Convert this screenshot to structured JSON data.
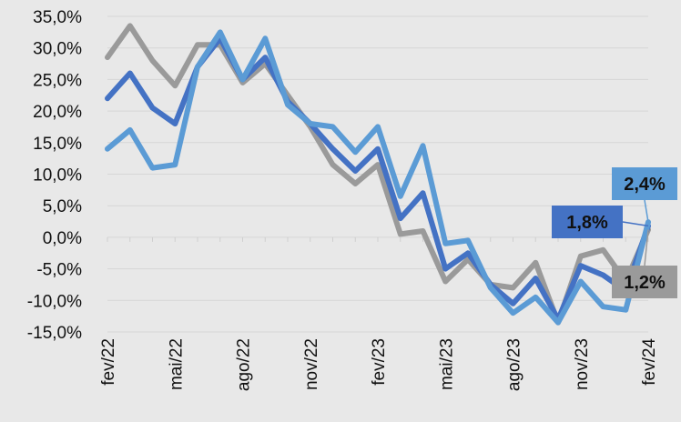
{
  "chart_data": {
    "type": "line",
    "title": "",
    "xlabel": "",
    "ylabel": "",
    "ylim": [
      -15,
      35
    ],
    "yticks": [
      -15,
      -10,
      -5,
      0,
      5,
      10,
      15,
      20,
      25,
      30,
      35
    ],
    "ytick_labels": [
      "-15,0%",
      "-10,0%",
      "-5,0%",
      "0,0%",
      "5,0%",
      "10,0%",
      "15,0%",
      "20,0%",
      "25,0%",
      "30,0%",
      "35,0%"
    ],
    "x": [
      "fev/22",
      "mar/22",
      "abr/22",
      "mai/22",
      "jun/22",
      "jul/22",
      "ago/22",
      "set/22",
      "out/22",
      "nov/22",
      "dez/22",
      "jan/23",
      "fev/23",
      "mar/23",
      "abr/23",
      "mai/23",
      "jun/23",
      "jul/23",
      "ago/23",
      "set/23",
      "out/23",
      "nov/23",
      "dez/23",
      "jan/24",
      "fev/24"
    ],
    "xtick_labels": [
      {
        "index": 0,
        "label": "fev/22"
      },
      {
        "index": 3,
        "label": "mai/22"
      },
      {
        "index": 6,
        "label": "ago/22"
      },
      {
        "index": 9,
        "label": "nov/22"
      },
      {
        "index": 12,
        "label": "fev/23"
      },
      {
        "index": 15,
        "label": "mai/23"
      },
      {
        "index": 18,
        "label": "ago/23"
      },
      {
        "index": 21,
        "label": "nov/23"
      },
      {
        "index": 24,
        "label": "fev/24"
      }
    ],
    "grid": "horizontal",
    "series": [
      {
        "color": "#9a9a9a",
        "values": [
          28.5,
          33.5,
          28.0,
          24.0,
          30.5,
          30.5,
          24.5,
          27.5,
          22.5,
          17.5,
          11.5,
          8.5,
          11.5,
          0.5,
          1.0,
          -7.0,
          -3.5,
          -7.5,
          -8.0,
          -4.0,
          -13.5,
          -3.0,
          -2.0,
          -7.0,
          1.2
        ],
        "end_label": "1,2%"
      },
      {
        "color": "#4472c4",
        "values": [
          22.0,
          26.0,
          20.5,
          18.0,
          27.0,
          31.5,
          25.0,
          28.5,
          21.5,
          18.0,
          14.0,
          10.5,
          14.0,
          3.0,
          7.0,
          -5.0,
          -2.5,
          -7.5,
          -10.5,
          -6.5,
          -13.0,
          -4.5,
          -6.0,
          -8.5,
          1.8
        ],
        "end_label": "1,8%"
      },
      {
        "color": "#5b9bd5",
        "values": [
          14.0,
          17.0,
          11.0,
          11.5,
          27.0,
          32.5,
          25.0,
          31.5,
          21.0,
          18.0,
          17.5,
          13.5,
          17.5,
          6.5,
          14.5,
          -1.0,
          -0.5,
          -8.0,
          -12.0,
          -9.5,
          -13.5,
          -7.0,
          -11.0,
          -11.5,
          2.4
        ],
        "end_label": "2,4%"
      }
    ],
    "callouts": [
      {
        "label": "2,4%",
        "series_index": 2,
        "fill": "#5b9bd5",
        "position": "above-right"
      },
      {
        "label": "1,8%",
        "series_index": 1,
        "fill": "#4472c4",
        "position": "left"
      },
      {
        "label": "1,2%",
        "series_index": 0,
        "fill": "#9a9a9a",
        "position": "below-right"
      }
    ]
  }
}
